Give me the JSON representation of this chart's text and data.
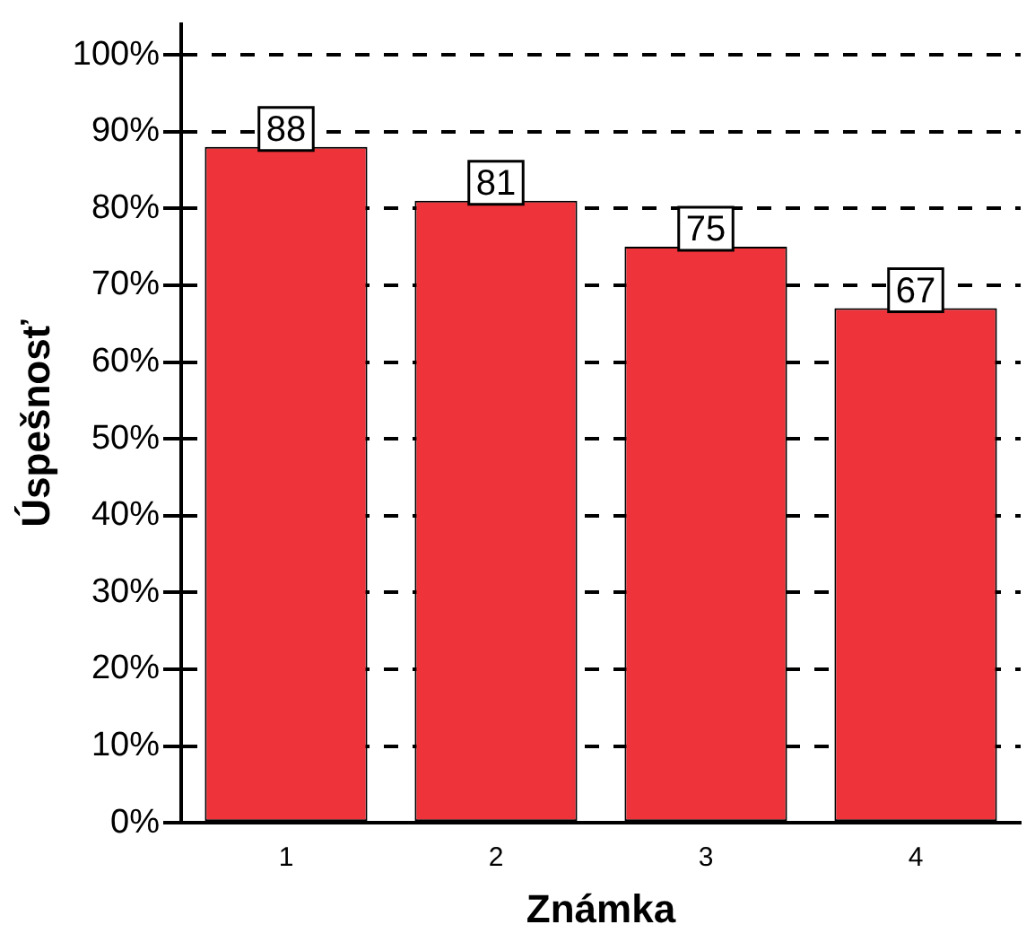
{
  "chart_data": {
    "type": "bar",
    "xlabel": "Známka",
    "ylabel": "Úspešnosť",
    "categories": [
      "1",
      "2",
      "3",
      "4"
    ],
    "values": [
      88,
      81,
      75,
      67
    ],
    "color": "#ee333a",
    "ylim": [
      0,
      104
    ],
    "yticks": [
      {
        "value": 0,
        "label": "0%"
      },
      {
        "value": 10,
        "label": "10%"
      },
      {
        "value": 20,
        "label": "20%"
      },
      {
        "value": 30,
        "label": "30%"
      },
      {
        "value": 40,
        "label": "40%"
      },
      {
        "value": 50,
        "label": "50%"
      },
      {
        "value": 60,
        "label": "60%"
      },
      {
        "value": 70,
        "label": "70%"
      },
      {
        "value": 80,
        "label": "80%"
      },
      {
        "value": 90,
        "label": "90%"
      },
      {
        "value": 100,
        "label": "100%"
      }
    ],
    "grid": "y",
    "data_labels": true,
    "legend": false
  }
}
